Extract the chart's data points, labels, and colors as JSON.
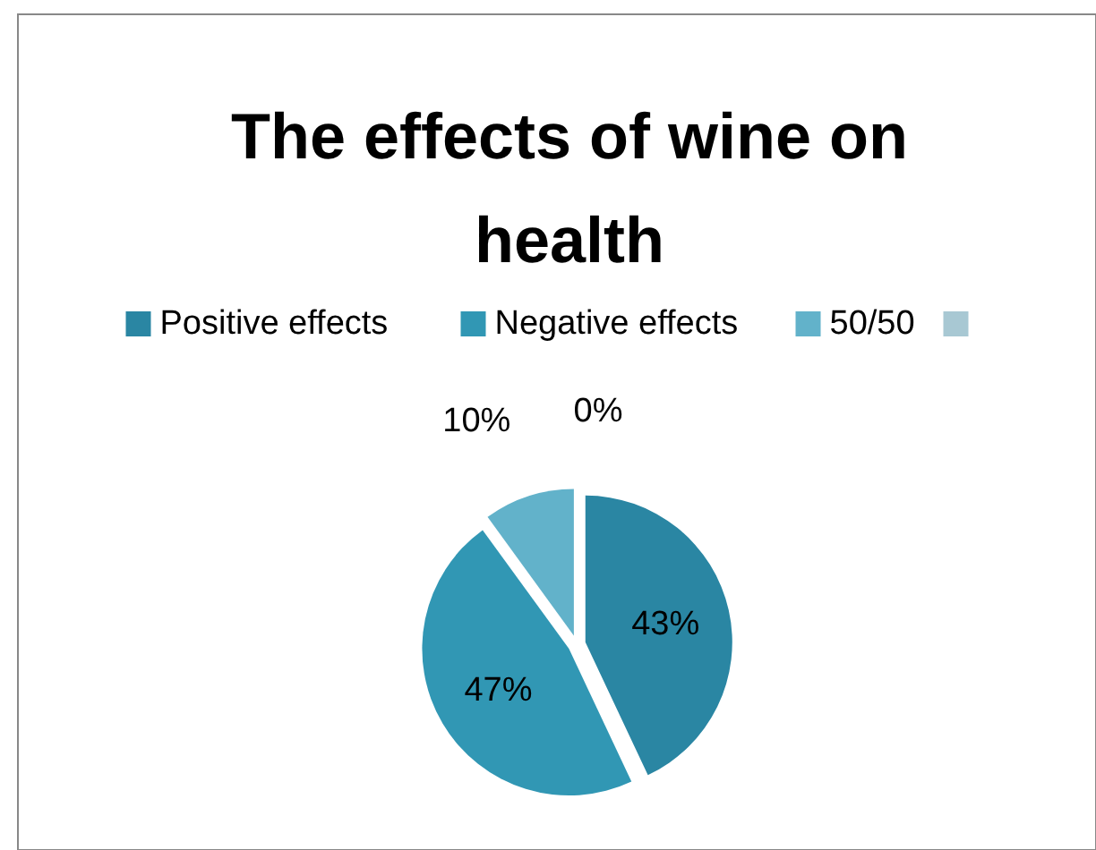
{
  "chart_data": {
    "type": "pie",
    "title": "The effects of wine on health",
    "categories": [
      "Positive effects",
      "Negative effects",
      "50/50",
      null
    ],
    "values": [
      43,
      47,
      10,
      0
    ],
    "colors": [
      "#2a86a3",
      "#3197b4",
      "#62b2ca",
      "#a8c8d3"
    ],
    "value_labels": [
      "43%",
      "47%",
      "10%",
      "0%"
    ],
    "legend": "top"
  }
}
